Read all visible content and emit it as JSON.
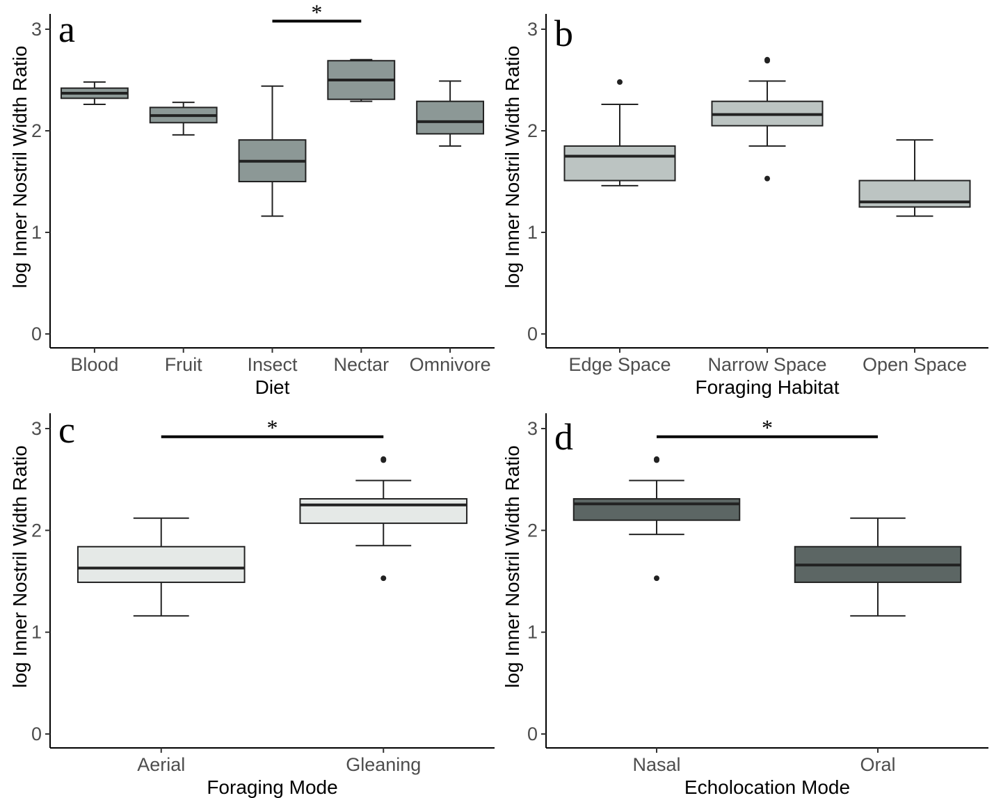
{
  "chart_data": [
    {
      "type": "box",
      "panel_label": "a",
      "xlabel": "Diet",
      "ylabel": "log Inner Nostril Width Ratio",
      "ylim": [
        0,
        3.1
      ],
      "yticks": [
        "0",
        "1",
        "2",
        "3"
      ],
      "fill": "#8c9896",
      "categories": [
        "Blood",
        "Fruit",
        "Insect",
        "Nectar",
        "Omnivore"
      ],
      "boxes": [
        {
          "min": 2.26,
          "q1": 2.32,
          "median": 2.37,
          "q3": 2.42,
          "max": 2.48,
          "outliers": []
        },
        {
          "min": 1.96,
          "q1": 2.08,
          "median": 2.15,
          "q3": 2.23,
          "max": 2.28,
          "outliers": []
        },
        {
          "min": 1.16,
          "q1": 1.5,
          "median": 1.7,
          "q3": 1.91,
          "max": 2.44,
          "outliers": []
        },
        {
          "min": 2.29,
          "q1": 2.31,
          "median": 2.5,
          "q3": 2.69,
          "max": 2.7,
          "outliers": []
        },
        {
          "min": 1.85,
          "q1": 1.97,
          "median": 2.09,
          "q3": 2.29,
          "max": 2.49,
          "outliers": []
        }
      ],
      "significance": [
        {
          "from": 2,
          "to": 3,
          "y": 3.08,
          "label": "*"
        }
      ]
    },
    {
      "type": "box",
      "panel_label": "b",
      "xlabel": "Foraging Habitat",
      "ylabel": "log Inner Nostril Width Ratio",
      "ylim": [
        0,
        3.1
      ],
      "yticks": [
        "0",
        "1",
        "2",
        "3"
      ],
      "fill": "#bcc4c2",
      "categories": [
        "Edge Space",
        "Narrow Space",
        "Open Space"
      ],
      "boxes": [
        {
          "min": 1.46,
          "q1": 1.51,
          "median": 1.75,
          "q3": 1.85,
          "max": 2.26,
          "outliers": [
            2.48
          ]
        },
        {
          "min": 1.85,
          "q1": 2.05,
          "median": 2.16,
          "q3": 2.29,
          "max": 2.49,
          "outliers": [
            1.53,
            2.69,
            2.7
          ]
        },
        {
          "min": 1.16,
          "q1": 1.25,
          "median": 1.3,
          "q3": 1.51,
          "max": 1.91,
          "outliers": []
        }
      ],
      "significance": []
    },
    {
      "type": "box",
      "panel_label": "c",
      "xlabel": "Foraging Mode",
      "ylabel": "log Inner Nostril Width Ratio",
      "ylim": [
        0,
        3.1
      ],
      "yticks": [
        "0",
        "1",
        "2",
        "3"
      ],
      "fill": "#e5e9e7",
      "categories": [
        "Aerial",
        "Gleaning"
      ],
      "boxes": [
        {
          "min": 1.16,
          "q1": 1.49,
          "median": 1.63,
          "q3": 1.84,
          "max": 2.12,
          "outliers": []
        },
        {
          "min": 1.85,
          "q1": 2.07,
          "median": 2.25,
          "q3": 2.31,
          "max": 2.49,
          "outliers": [
            1.53,
            2.69,
            2.7
          ]
        }
      ],
      "significance": [
        {
          "from": 0,
          "to": 1,
          "y": 2.92,
          "label": "*"
        }
      ]
    },
    {
      "type": "box",
      "panel_label": "d",
      "xlabel": "Echolocation Mode",
      "ylabel": "log Inner Nostril Width Ratio",
      "ylim": [
        0,
        3.1
      ],
      "yticks": [
        "0",
        "1",
        "2",
        "3"
      ],
      "fill": "#5c6664",
      "categories": [
        "Nasal",
        "Oral"
      ],
      "boxes": [
        {
          "min": 1.96,
          "q1": 2.1,
          "median": 2.26,
          "q3": 2.31,
          "max": 2.49,
          "outliers": [
            1.53,
            2.69,
            2.7
          ]
        },
        {
          "min": 1.16,
          "q1": 1.49,
          "median": 1.66,
          "q3": 1.84,
          "max": 2.12,
          "outliers": []
        }
      ],
      "significance": [
        {
          "from": 0,
          "to": 1,
          "y": 2.92,
          "label": "*"
        }
      ]
    }
  ]
}
